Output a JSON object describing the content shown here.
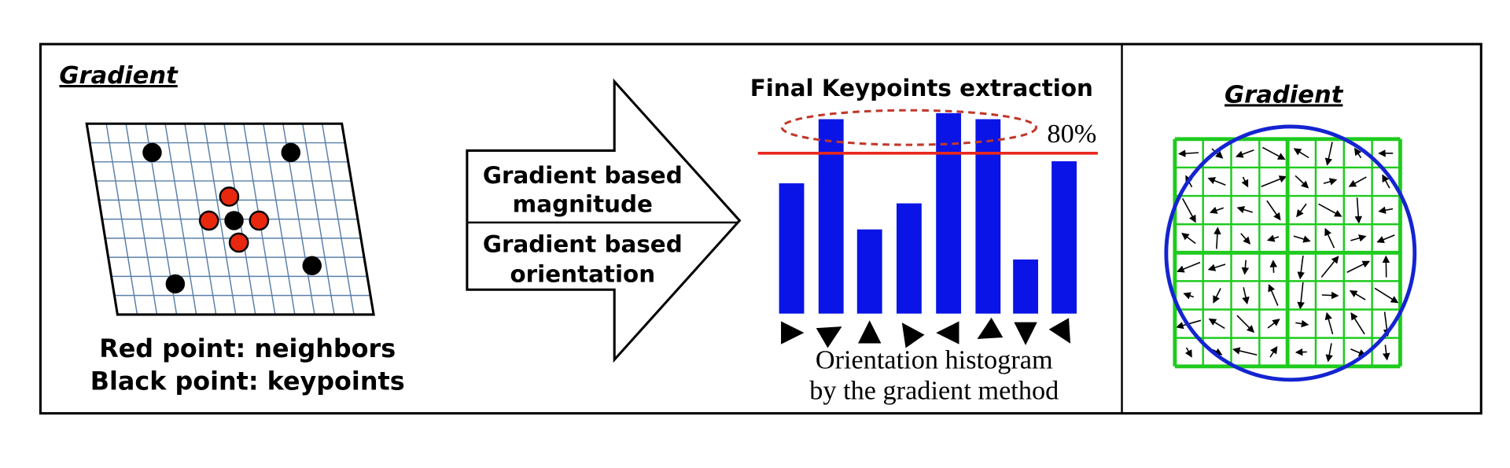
{
  "left_panel": {
    "title": "Gradient",
    "legend": [
      "Red point: neighbors",
      "Black point: keypoints"
    ]
  },
  "arrow": {
    "labels": [
      "Gradient based",
      "magnitude",
      "Gradient based",
      "orientation"
    ]
  },
  "histogram": {
    "title": "Final Keypoints extraction",
    "values": [
      65,
      97,
      42,
      55,
      100,
      97,
      27,
      76
    ],
    "threshold": 80,
    "threshold_label": "80%",
    "caption": [
      "Orientation histogram",
      "by the gradient method"
    ]
  },
  "right_panel": {
    "title": "Gradient"
  }
}
